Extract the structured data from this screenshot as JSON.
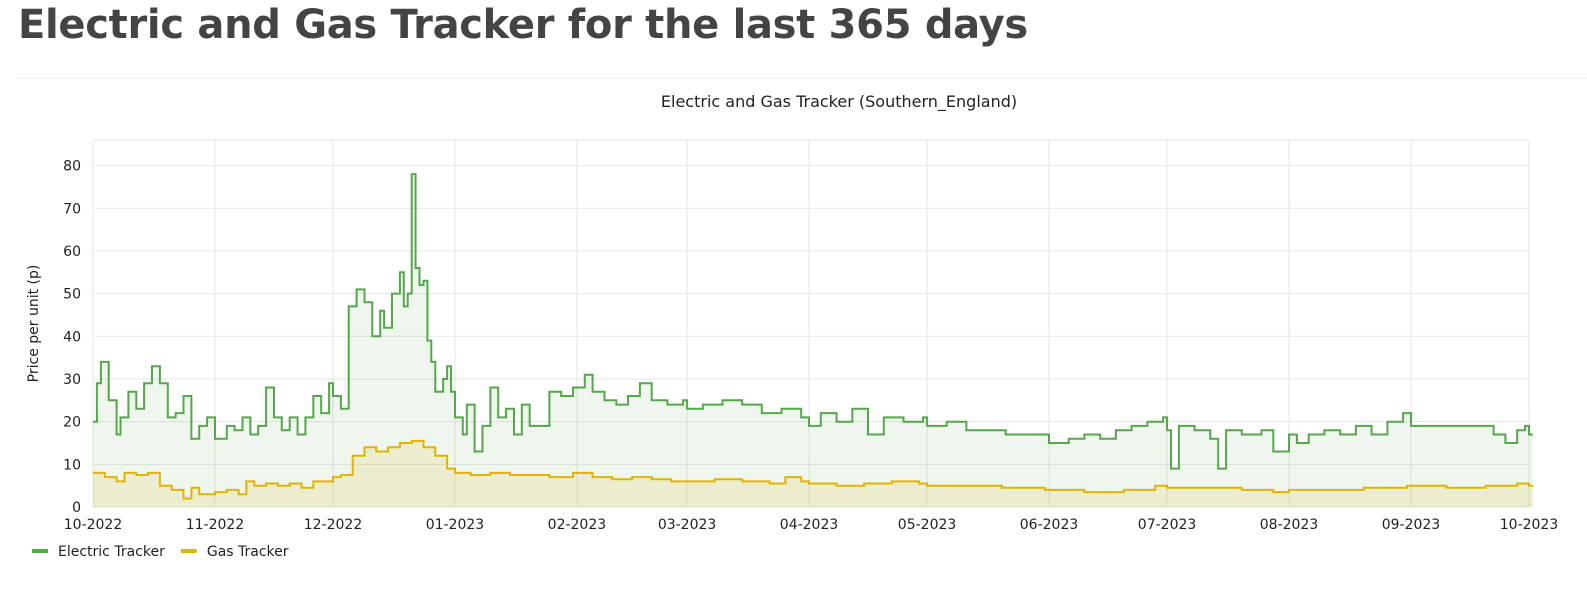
{
  "page": {
    "title": "Electric and Gas Tracker for the last 365 days"
  },
  "chart_data": {
    "type": "area",
    "step": true,
    "title": "Electric and Gas Tracker (Southern_England)",
    "xlabel": "",
    "ylabel": "Price per unit (p)",
    "ylim": [
      0,
      86
    ],
    "xlim": [
      "2022-10-01",
      "2023-10-01"
    ],
    "grid": true,
    "legend": "bottom-left",
    "x_ticks": [
      "2022-10-01",
      "2022-11-01",
      "2022-12-01",
      "2023-01-01",
      "2023-02-01",
      "2023-03-01",
      "2023-04-01",
      "2023-05-01",
      "2023-06-01",
      "2023-07-01",
      "2023-08-01",
      "2023-09-01",
      "2023-10-01"
    ],
    "x_tick_labels": [
      "10-2022",
      "11-2022",
      "12-2022",
      "01-2023",
      "02-2023",
      "03-2023",
      "04-2023",
      "05-2023",
      "06-2023",
      "07-2023",
      "08-2023",
      "09-2023",
      "10-2023"
    ],
    "y_ticks": [
      0,
      10,
      20,
      30,
      40,
      50,
      60,
      70,
      80
    ],
    "y_tick_labels": [
      "0",
      "10",
      "20",
      "30",
      "40",
      "50",
      "60",
      "70",
      "80"
    ],
    "series": [
      {
        "name": "Electric Tracker",
        "color": "#56a64b",
        "points": [
          [
            "2022-10-01",
            20
          ],
          [
            "2022-10-02",
            29
          ],
          [
            "2022-10-03",
            34
          ],
          [
            "2022-10-05",
            25
          ],
          [
            "2022-10-07",
            17
          ],
          [
            "2022-10-08",
            21
          ],
          [
            "2022-10-10",
            27
          ],
          [
            "2022-10-12",
            23
          ],
          [
            "2022-10-14",
            29
          ],
          [
            "2022-10-16",
            33
          ],
          [
            "2022-10-18",
            29
          ],
          [
            "2022-10-20",
            21
          ],
          [
            "2022-10-22",
            22
          ],
          [
            "2022-10-24",
            26
          ],
          [
            "2022-10-26",
            16
          ],
          [
            "2022-10-28",
            19
          ],
          [
            "2022-10-30",
            21
          ],
          [
            "2022-11-01",
            16
          ],
          [
            "2022-11-04",
            19
          ],
          [
            "2022-11-06",
            18
          ],
          [
            "2022-11-08",
            21
          ],
          [
            "2022-11-10",
            17
          ],
          [
            "2022-11-12",
            19
          ],
          [
            "2022-11-14",
            28
          ],
          [
            "2022-11-16",
            21
          ],
          [
            "2022-11-18",
            18
          ],
          [
            "2022-11-20",
            21
          ],
          [
            "2022-11-22",
            17
          ],
          [
            "2022-11-24",
            21
          ],
          [
            "2022-11-26",
            26
          ],
          [
            "2022-11-28",
            22
          ],
          [
            "2022-11-30",
            29
          ],
          [
            "2022-12-01",
            26
          ],
          [
            "2022-12-03",
            23
          ],
          [
            "2022-12-05",
            47
          ],
          [
            "2022-12-07",
            51
          ],
          [
            "2022-12-09",
            48
          ],
          [
            "2022-12-11",
            40
          ],
          [
            "2022-12-13",
            46
          ],
          [
            "2022-12-14",
            42
          ],
          [
            "2022-12-16",
            50
          ],
          [
            "2022-12-18",
            55
          ],
          [
            "2022-12-19",
            47
          ],
          [
            "2022-12-20",
            50
          ],
          [
            "2022-12-21",
            78
          ],
          [
            "2022-12-22",
            56
          ],
          [
            "2022-12-23",
            52
          ],
          [
            "2022-12-24",
            53
          ],
          [
            "2022-12-25",
            39
          ],
          [
            "2022-12-26",
            34
          ],
          [
            "2022-12-27",
            27
          ],
          [
            "2022-12-29",
            30
          ],
          [
            "2022-12-30",
            33
          ],
          [
            "2022-12-31",
            27
          ],
          [
            "2023-01-01",
            21
          ],
          [
            "2023-01-03",
            17
          ],
          [
            "2023-01-04",
            24
          ],
          [
            "2023-01-06",
            13
          ],
          [
            "2023-01-08",
            19
          ],
          [
            "2023-01-10",
            28
          ],
          [
            "2023-01-12",
            21
          ],
          [
            "2023-01-14",
            23
          ],
          [
            "2023-01-16",
            17
          ],
          [
            "2023-01-18",
            24
          ],
          [
            "2023-01-20",
            19
          ],
          [
            "2023-01-25",
            27
          ],
          [
            "2023-01-28",
            26
          ],
          [
            "2023-01-31",
            28
          ],
          [
            "2023-02-01",
            28
          ],
          [
            "2023-02-03",
            31
          ],
          [
            "2023-02-05",
            27
          ],
          [
            "2023-02-08",
            25
          ],
          [
            "2023-02-11",
            24
          ],
          [
            "2023-02-14",
            26
          ],
          [
            "2023-02-17",
            29
          ],
          [
            "2023-02-20",
            25
          ],
          [
            "2023-02-24",
            24
          ],
          [
            "2023-02-28",
            25
          ],
          [
            "2023-03-01",
            23
          ],
          [
            "2023-03-05",
            24
          ],
          [
            "2023-03-10",
            25
          ],
          [
            "2023-03-15",
            24
          ],
          [
            "2023-03-20",
            22
          ],
          [
            "2023-03-25",
            23
          ],
          [
            "2023-03-30",
            21
          ],
          [
            "2023-04-01",
            19
          ],
          [
            "2023-04-04",
            22
          ],
          [
            "2023-04-08",
            20
          ],
          [
            "2023-04-12",
            23
          ],
          [
            "2023-04-16",
            17
          ],
          [
            "2023-04-20",
            21
          ],
          [
            "2023-04-25",
            20
          ],
          [
            "2023-04-30",
            21
          ],
          [
            "2023-05-01",
            19
          ],
          [
            "2023-05-06",
            20
          ],
          [
            "2023-05-11",
            18
          ],
          [
            "2023-05-16",
            18
          ],
          [
            "2023-05-21",
            17
          ],
          [
            "2023-05-26",
            17
          ],
          [
            "2023-05-31",
            17
          ],
          [
            "2023-06-01",
            15
          ],
          [
            "2023-06-06",
            16
          ],
          [
            "2023-06-10",
            17
          ],
          [
            "2023-06-14",
            16
          ],
          [
            "2023-06-18",
            18
          ],
          [
            "2023-06-22",
            19
          ],
          [
            "2023-06-26",
            20
          ],
          [
            "2023-06-30",
            21
          ],
          [
            "2023-07-01",
            18
          ],
          [
            "2023-07-02",
            9
          ],
          [
            "2023-07-04",
            19
          ],
          [
            "2023-07-08",
            18
          ],
          [
            "2023-07-12",
            16
          ],
          [
            "2023-07-14",
            9
          ],
          [
            "2023-07-16",
            18
          ],
          [
            "2023-07-20",
            17
          ],
          [
            "2023-07-25",
            18
          ],
          [
            "2023-07-28",
            13
          ],
          [
            "2023-08-01",
            17
          ],
          [
            "2023-08-03",
            15
          ],
          [
            "2023-08-06",
            17
          ],
          [
            "2023-08-10",
            18
          ],
          [
            "2023-08-14",
            17
          ],
          [
            "2023-08-18",
            19
          ],
          [
            "2023-08-22",
            17
          ],
          [
            "2023-08-26",
            20
          ],
          [
            "2023-08-30",
            22
          ],
          [
            "2023-09-01",
            19
          ],
          [
            "2023-09-06",
            19
          ],
          [
            "2023-09-12",
            19
          ],
          [
            "2023-09-18",
            19
          ],
          [
            "2023-09-22",
            17
          ],
          [
            "2023-09-25",
            15
          ],
          [
            "2023-09-28",
            18
          ],
          [
            "2023-09-30",
            19
          ],
          [
            "2023-10-01",
            17
          ]
        ]
      },
      {
        "name": "Gas Tracker",
        "color": "#e0b400",
        "points": [
          [
            "2022-10-01",
            8
          ],
          [
            "2022-10-04",
            7
          ],
          [
            "2022-10-07",
            6
          ],
          [
            "2022-10-09",
            8
          ],
          [
            "2022-10-12",
            7.5
          ],
          [
            "2022-10-15",
            8
          ],
          [
            "2022-10-18",
            5
          ],
          [
            "2022-10-21",
            4
          ],
          [
            "2022-10-24",
            2
          ],
          [
            "2022-10-26",
            4.5
          ],
          [
            "2022-10-28",
            3
          ],
          [
            "2022-11-01",
            3.5
          ],
          [
            "2022-11-04",
            4
          ],
          [
            "2022-11-07",
            3
          ],
          [
            "2022-11-09",
            6
          ],
          [
            "2022-11-11",
            5
          ],
          [
            "2022-11-14",
            5.5
          ],
          [
            "2022-11-17",
            5
          ],
          [
            "2022-11-20",
            5.5
          ],
          [
            "2022-11-23",
            4.5
          ],
          [
            "2022-11-26",
            6
          ],
          [
            "2022-11-29",
            6
          ],
          [
            "2022-12-01",
            7
          ],
          [
            "2022-12-03",
            7.5
          ],
          [
            "2022-12-06",
            12
          ],
          [
            "2022-12-09",
            14
          ],
          [
            "2022-12-12",
            13
          ],
          [
            "2022-12-15",
            14
          ],
          [
            "2022-12-18",
            15
          ],
          [
            "2022-12-21",
            15.5
          ],
          [
            "2022-12-24",
            14
          ],
          [
            "2022-12-27",
            12
          ],
          [
            "2022-12-30",
            9
          ],
          [
            "2023-01-01",
            8
          ],
          [
            "2023-01-05",
            7.5
          ],
          [
            "2023-01-10",
            8
          ],
          [
            "2023-01-15",
            7.5
          ],
          [
            "2023-01-20",
            7.5
          ],
          [
            "2023-01-25",
            7
          ],
          [
            "2023-01-31",
            8
          ],
          [
            "2023-02-05",
            7
          ],
          [
            "2023-02-10",
            6.5
          ],
          [
            "2023-02-15",
            7
          ],
          [
            "2023-02-20",
            6.5
          ],
          [
            "2023-02-25",
            6
          ],
          [
            "2023-03-01",
            6
          ],
          [
            "2023-03-08",
            6.5
          ],
          [
            "2023-03-15",
            6
          ],
          [
            "2023-03-22",
            5.5
          ],
          [
            "2023-03-26",
            7
          ],
          [
            "2023-03-30",
            6
          ],
          [
            "2023-04-01",
            5.5
          ],
          [
            "2023-04-08",
            5
          ],
          [
            "2023-04-15",
            5.5
          ],
          [
            "2023-04-22",
            6
          ],
          [
            "2023-04-29",
            5.5
          ],
          [
            "2023-05-01",
            5
          ],
          [
            "2023-05-10",
            5
          ],
          [
            "2023-05-20",
            4.5
          ],
          [
            "2023-05-31",
            4
          ],
          [
            "2023-06-01",
            4
          ],
          [
            "2023-06-10",
            3.5
          ],
          [
            "2023-06-20",
            4
          ],
          [
            "2023-06-28",
            5
          ],
          [
            "2023-07-01",
            4.5
          ],
          [
            "2023-07-10",
            4.5
          ],
          [
            "2023-07-20",
            4
          ],
          [
            "2023-07-28",
            3.5
          ],
          [
            "2023-08-01",
            4
          ],
          [
            "2023-08-10",
            4
          ],
          [
            "2023-08-20",
            4.5
          ],
          [
            "2023-08-31",
            5
          ],
          [
            "2023-09-01",
            5
          ],
          [
            "2023-09-10",
            4.5
          ],
          [
            "2023-09-20",
            5
          ],
          [
            "2023-09-28",
            5.5
          ],
          [
            "2023-10-01",
            5
          ]
        ]
      }
    ]
  }
}
